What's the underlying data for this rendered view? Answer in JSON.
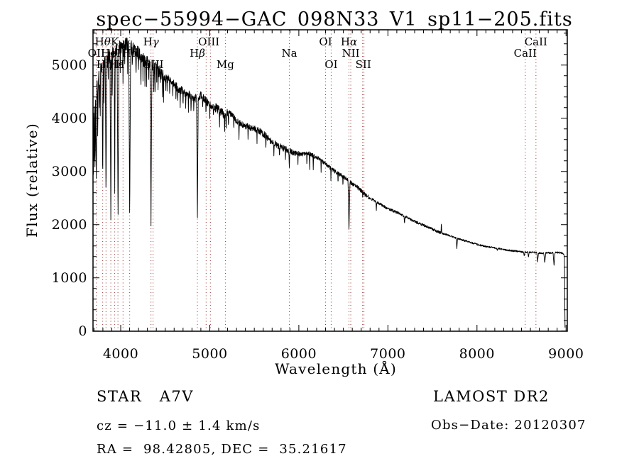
{
  "title": "spec−55994−GAC_098N33_V1_sp11−205.fits",
  "footer": {
    "class_label": "STAR   A7V",
    "survey": "LAMOST DR2",
    "cz": "cz = −11.0 ± 1.4 km/s",
    "obs_date": "Obs−Date: 20120307",
    "ra_dec": "RA =  98.42805, DEC =  35.21617"
  },
  "colors": {
    "background": "#ffffff",
    "spectrum": "#000000",
    "frame": "#000000",
    "line_marker": "#993333"
  },
  "chart_data": {
    "type": "line",
    "title": "spec−55994−GAC_098N33_V1_sp11−205.fits",
    "xlabel": "Wavelength (Å)",
    "ylabel": "Flux (relative)",
    "xlim": [
      3689,
      9014
    ],
    "ylim": [
      0,
      5665
    ],
    "x_ticks": [
      4000,
      5000,
      6000,
      7000,
      8000,
      9000
    ],
    "x_minor_step": 100,
    "y_ticks": [
      0,
      1000,
      2000,
      3000,
      4000,
      5000
    ],
    "y_minor_step": 200,
    "grid": false,
    "legend": "none",
    "series_name": "flux",
    "continuum": [
      [
        3689,
        2500
      ],
      [
        3691,
        4100
      ],
      [
        3694,
        2700
      ],
      [
        3697,
        4300
      ],
      [
        3701,
        3000
      ],
      [
        3705,
        4400
      ],
      [
        3710,
        3200
      ],
      [
        3716,
        4550
      ],
      [
        3722,
        3400
      ],
      [
        3729,
        4550
      ],
      [
        3736,
        4650
      ],
      [
        3743,
        4300
      ],
      [
        3750,
        4800
      ],
      [
        3758,
        4850
      ],
      [
        3766,
        4550
      ],
      [
        3775,
        4950
      ],
      [
        3789,
        4950
      ],
      [
        3806,
        5000
      ],
      [
        3824,
        5050
      ],
      [
        3843,
        5100
      ],
      [
        3868,
        5150
      ],
      [
        3910,
        5250
      ],
      [
        3960,
        5300
      ],
      [
        4005,
        5350
      ],
      [
        4050,
        5400
      ],
      [
        4090,
        5380
      ],
      [
        4140,
        5300
      ],
      [
        4190,
        5250
      ],
      [
        4240,
        5150
      ],
      [
        4300,
        5050
      ],
      [
        4360,
        4980
      ],
      [
        4430,
        4900
      ],
      [
        4500,
        4780
      ],
      [
        4570,
        4680
      ],
      [
        4650,
        4550
      ],
      [
        4720,
        4480
      ],
      [
        4800,
        4400
      ],
      [
        4840,
        4380
      ],
      [
        4900,
        4420
      ],
      [
        4960,
        4330
      ],
      [
        5020,
        4250
      ],
      [
        5080,
        4180
      ],
      [
        5150,
        4080
      ],
      [
        5230,
        4090
      ],
      [
        5300,
        3950
      ],
      [
        5380,
        3870
      ],
      [
        5460,
        3820
      ],
      [
        5540,
        3780
      ],
      [
        5620,
        3680
      ],
      [
        5700,
        3550
      ],
      [
        5780,
        3470
      ],
      [
        5860,
        3420
      ],
      [
        5940,
        3350
      ],
      [
        6020,
        3320
      ],
      [
        6110,
        3340
      ],
      [
        6180,
        3280
      ],
      [
        6260,
        3200
      ],
      [
        6340,
        3080
      ],
      [
        6420,
        2980
      ],
      [
        6480,
        2920
      ],
      [
        6540,
        2850
      ],
      [
        6600,
        2770
      ],
      [
        6660,
        2700
      ],
      [
        6740,
        2570
      ],
      [
        6820,
        2480
      ],
      [
        6900,
        2400
      ],
      [
        6980,
        2320
      ],
      [
        7060,
        2260
      ],
      [
        7140,
        2200
      ],
      [
        7220,
        2130
      ],
      [
        7300,
        2060
      ],
      [
        7380,
        2000
      ],
      [
        7460,
        1950
      ],
      [
        7540,
        1880
      ],
      [
        7620,
        1830
      ],
      [
        7700,
        1790
      ],
      [
        7780,
        1740
      ],
      [
        7860,
        1700
      ],
      [
        7940,
        1660
      ],
      [
        8020,
        1620
      ],
      [
        8100,
        1590
      ],
      [
        8180,
        1570
      ],
      [
        8260,
        1545
      ],
      [
        8340,
        1520
      ],
      [
        8420,
        1505
      ],
      [
        8500,
        1490
      ],
      [
        8560,
        1480
      ],
      [
        8620,
        1480
      ],
      [
        8690,
        1470
      ],
      [
        8730,
        1460
      ],
      [
        8800,
        1470
      ],
      [
        8840,
        1470
      ],
      [
        8890,
        1480
      ],
      [
        8940,
        1470
      ],
      [
        8968,
        1460
      ],
      [
        8978,
        1440
      ],
      [
        8983,
        1350
      ],
      [
        8986,
        600
      ],
      [
        8988,
        60
      ]
    ],
    "absorption_lines": [
      [
        3712,
        2900,
        4
      ],
      [
        3727,
        2600,
        5
      ],
      [
        3742,
        3600,
        4
      ],
      [
        3760,
        4000,
        3
      ],
      [
        3770,
        3900,
        4
      ],
      [
        3798,
        2600,
        8
      ],
      [
        3812,
        4200,
        4
      ],
      [
        3835,
        2300,
        9
      ],
      [
        3860,
        4600,
        3
      ],
      [
        3889,
        1950,
        10
      ],
      [
        3905,
        4300,
        4
      ],
      [
        3933,
        2400,
        6
      ],
      [
        3970,
        1850,
        11
      ],
      [
        3995,
        4800,
        3
      ],
      [
        4026,
        4500,
        4
      ],
      [
        4045,
        4900,
        3
      ],
      [
        4078,
        4700,
        3
      ],
      [
        4101,
        1880,
        11
      ],
      [
        4130,
        4800,
        3
      ],
      [
        4172,
        4700,
        4
      ],
      [
        4200,
        4800,
        3
      ],
      [
        4227,
        4400,
        4
      ],
      [
        4250,
        4700,
        3
      ],
      [
        4272,
        4600,
        3
      ],
      [
        4290,
        4500,
        3
      ],
      [
        4315,
        4600,
        3
      ],
      [
        4340,
        1850,
        11
      ],
      [
        4371,
        4500,
        3
      ],
      [
        4385,
        4300,
        4
      ],
      [
        4405,
        4500,
        3
      ],
      [
        4420,
        4400,
        3
      ],
      [
        4445,
        4500,
        3
      ],
      [
        4470,
        4400,
        3
      ],
      [
        4481,
        4300,
        4
      ],
      [
        4505,
        4500,
        3
      ],
      [
        4520,
        4400,
        3
      ],
      [
        4550,
        4300,
        3
      ],
      [
        4585,
        4350,
        3
      ],
      [
        4620,
        4300,
        3
      ],
      [
        4640,
        4250,
        3
      ],
      [
        4668,
        4200,
        3
      ],
      [
        4700,
        4150,
        3
      ],
      [
        4730,
        4100,
        3
      ],
      [
        4760,
        4050,
        3
      ],
      [
        4790,
        4000,
        3
      ],
      [
        4820,
        4100,
        3
      ],
      [
        4861,
        1870,
        10
      ],
      [
        4920,
        4100,
        3
      ],
      [
        4957,
        4000,
        3
      ],
      [
        5000,
        3950,
        3
      ],
      [
        5041,
        3900,
        3
      ],
      [
        5110,
        3800,
        3
      ],
      [
        5167,
        3700,
        4
      ],
      [
        5184,
        3650,
        4
      ],
      [
        5210,
        3750,
        3
      ],
      [
        5270,
        3700,
        3
      ],
      [
        5328,
        3600,
        4
      ],
      [
        5430,
        3500,
        3
      ],
      [
        5530,
        3450,
        3
      ],
      [
        5630,
        3350,
        3
      ],
      [
        5720,
        3250,
        4
      ],
      [
        5782,
        3200,
        3
      ],
      [
        5850,
        3150,
        3
      ],
      [
        5893,
        3040,
        7
      ],
      [
        5990,
        3100,
        3
      ],
      [
        6090,
        3050,
        3
      ],
      [
        6122,
        3000,
        4
      ],
      [
        6162,
        3000,
        4
      ],
      [
        6250,
        2950,
        3
      ],
      [
        6360,
        2800,
        3
      ],
      [
        6440,
        2700,
        3
      ],
      [
        6495,
        2650,
        3
      ],
      [
        6563,
        1790,
        11
      ],
      [
        6717,
        2450,
        3
      ],
      [
        6870,
        2250,
        5
      ],
      [
        7186,
        2000,
        6
      ],
      [
        7774,
        1530,
        8
      ],
      [
        8227,
        1500,
        4
      ],
      [
        8530,
        1400,
        8
      ],
      [
        8578,
        1380,
        8
      ],
      [
        8681,
        1290,
        10
      ],
      [
        8761,
        1260,
        11
      ],
      [
        8865,
        1210,
        12
      ]
    ],
    "emission_spikes": [
      [
        7600,
        180,
        5
      ]
    ],
    "noise_regions": [
      [
        3689,
        4500,
        130
      ],
      [
        4500,
        5200,
        85
      ],
      [
        5200,
        6000,
        60
      ],
      [
        6000,
        6800,
        38
      ],
      [
        6800,
        7600,
        25
      ],
      [
        7600,
        8990,
        16
      ]
    ],
    "line_markers": [
      3727,
      3798,
      3835,
      3889,
      3933,
      3969,
      4026,
      4101,
      4340,
      4363,
      4861,
      4959,
      5007,
      5175,
      5893,
      6300,
      6363,
      6563,
      6583,
      6716,
      6731,
      8542,
      8662
    ],
    "line_labels": [
      {
        "text": "Hθ",
        "wavelength": 3798,
        "row": 1
      },
      {
        "text": "K",
        "wavelength": 3933,
        "row": 1
      },
      {
        "text": "Hγ",
        "wavelength": 4340,
        "row": 1
      },
      {
        "text": "OIII",
        "wavelength": 4990,
        "row": 1
      },
      {
        "text": "OI",
        "wavelength": 6300,
        "row": 1
      },
      {
        "text": "Hα",
        "wavelength": 6563,
        "row": 1
      },
      {
        "text": "CaII",
        "wavelength": 8662,
        "row": 1
      },
      {
        "text": "OII",
        "wavelength": 3727,
        "row": 2
      },
      {
        "text": "HeI",
        "wavelength": 3889,
        "row": 2
      },
      {
        "text": "Hδ",
        "wavelength": 4101,
        "row": 2
      },
      {
        "text": "Hβ",
        "wavelength": 4861,
        "row": 2
      },
      {
        "text": "Na",
        "wavelength": 5893,
        "row": 2
      },
      {
        "text": "NII",
        "wavelength": 6583,
        "row": 2
      },
      {
        "text": "CaII",
        "wavelength": 8542,
        "row": 2
      },
      {
        "text": "Hη",
        "wavelength": 3815,
        "row": 3
      },
      {
        "text": "Hε",
        "wavelength": 3950,
        "row": 3
      },
      {
        "text": "H",
        "wavelength": 3992,
        "row": 3
      },
      {
        "text": "OIII",
        "wavelength": 4363,
        "row": 3
      },
      {
        "text": "Mg",
        "wavelength": 5175,
        "row": 3
      },
      {
        "text": "OI",
        "wavelength": 6363,
        "row": 3
      },
      {
        "text": "SII",
        "wavelength": 6724,
        "row": 3
      }
    ]
  }
}
